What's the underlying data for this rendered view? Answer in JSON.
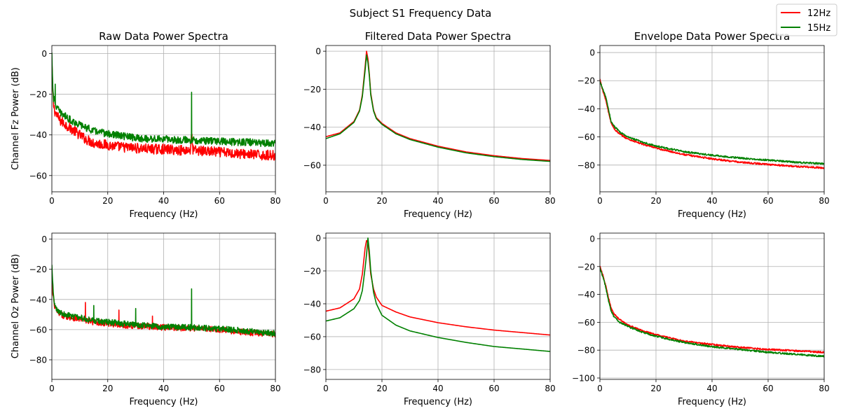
{
  "figure": {
    "suptitle": "Subject S1 Frequency Data",
    "legend": {
      "placement": "top-right",
      "entries": [
        {
          "name": "12Hz",
          "color": "#ff0000"
        },
        {
          "name": "15Hz",
          "color": "#008000"
        }
      ]
    }
  },
  "chart_data": [
    {
      "type": "line",
      "title": "Raw Data Power Spectra",
      "xlabel": "Frequency (Hz)",
      "ylabel": "Channel Fz Power (dB)",
      "xlim": [
        0,
        80
      ],
      "ylim": [
        -68,
        4
      ],
      "xticks": [
        0,
        20,
        40,
        60,
        80
      ],
      "yticks": [
        0,
        -20,
        -40,
        -60
      ],
      "grid": true,
      "series": [
        {
          "name": "12Hz",
          "color": "#ff0000",
          "noise": 2.5,
          "x": [
            0,
            0.3,
            0.6,
            1,
            2,
            3,
            4,
            5,
            7,
            10,
            12,
            15,
            20,
            25,
            30,
            35,
            40,
            45,
            49.5,
            50,
            50.5,
            55,
            60,
            65,
            70,
            75,
            80
          ],
          "y": [
            -5,
            -18,
            -25,
            -28,
            -31,
            -33,
            -34,
            -35,
            -37,
            -40,
            -42,
            -44,
            -45,
            -46,
            -46.5,
            -47,
            -47,
            -47.5,
            -47.5,
            -40,
            -47.5,
            -48,
            -48.5,
            -49,
            -49.5,
            -50,
            -50
          ],
          "spikes": [
            {
              "x": 50,
              "y": -40
            }
          ]
        },
        {
          "name": "15Hz",
          "color": "#008000",
          "noise": 1.8,
          "x": [
            0,
            0.3,
            0.6,
            1,
            2,
            3,
            4,
            5,
            7,
            10,
            15,
            20,
            25,
            30,
            35,
            40,
            45,
            49.5,
            50,
            50.5,
            55,
            60,
            65,
            70,
            75,
            80
          ],
          "y": [
            0,
            -15,
            -22,
            -24,
            -27,
            -29,
            -30,
            -31,
            -33,
            -35,
            -38,
            -39.5,
            -40.5,
            -41.5,
            -42,
            -42,
            -42.5,
            -42.5,
            -42.5,
            -42.5,
            -43,
            -43,
            -43.5,
            -43.5,
            -44,
            -44
          ],
          "spikes": [
            {
              "x": 1.2,
              "y": -15
            },
            {
              "x": 50,
              "y": -19
            }
          ]
        }
      ]
    },
    {
      "type": "line",
      "title": "Filtered Data Power Spectra",
      "xlabel": "Frequency (Hz)",
      "ylabel": "",
      "xlim": [
        0,
        80
      ],
      "ylim": [
        -74,
        3
      ],
      "xticks": [
        0,
        20,
        40,
        60,
        80
      ],
      "yticks": [
        0,
        -20,
        -40,
        -60
      ],
      "grid": true,
      "series": [
        {
          "name": "12Hz",
          "color": "#ff0000",
          "noise": 0,
          "x": [
            0,
            5,
            10,
            12,
            13,
            14,
            14.5,
            15,
            15.5,
            16,
            17,
            18,
            20,
            25,
            30,
            40,
            50,
            60,
            70,
            80
          ],
          "y": [
            -45,
            -43,
            -37,
            -31,
            -23,
            -8,
            0,
            -4,
            -12,
            -22,
            -31,
            -35,
            -38,
            -43,
            -46,
            -50,
            -53,
            -55,
            -56.5,
            -57.5
          ]
        },
        {
          "name": "15Hz",
          "color": "#008000",
          "noise": 0,
          "x": [
            0,
            5,
            10,
            12,
            13,
            14,
            14.5,
            15,
            15.5,
            16,
            17,
            18,
            20,
            25,
            30,
            40,
            50,
            60,
            70,
            80
          ],
          "y": [
            -46,
            -43.5,
            -37.5,
            -31.5,
            -24,
            -10,
            -2,
            -6,
            -13,
            -23,
            -31.5,
            -35.5,
            -38.5,
            -43.5,
            -46.5,
            -50.5,
            -53.5,
            -55.5,
            -57,
            -58
          ]
        }
      ]
    },
    {
      "type": "line",
      "title": "Envelope Data Power Spectra",
      "xlabel": "Frequency (Hz)",
      "ylabel": "",
      "xlim": [
        0,
        80
      ],
      "ylim": [
        -99,
        5
      ],
      "xticks": [
        0,
        20,
        40,
        60,
        80
      ],
      "yticks": [
        0,
        -20,
        -40,
        -60,
        -80
      ],
      "grid": true,
      "series": [
        {
          "name": "12Hz",
          "color": "#ff0000",
          "noise": 0.6,
          "x": [
            0,
            0.5,
            1,
            2,
            3,
            4,
            5,
            7,
            10,
            15,
            20,
            30,
            40,
            50,
            60,
            70,
            80
          ],
          "y": [
            -19,
            -23,
            -27,
            -33,
            -42,
            -50,
            -54,
            -58,
            -61.5,
            -65,
            -68,
            -72.5,
            -75.5,
            -78,
            -79.5,
            -81,
            -82
          ]
        },
        {
          "name": "15Hz",
          "color": "#008000",
          "noise": 0.6,
          "x": [
            0,
            0.5,
            1,
            2,
            3,
            4,
            5,
            7,
            10,
            15,
            20,
            30,
            40,
            50,
            60,
            70,
            80
          ],
          "y": [
            -21,
            -23,
            -26,
            -31,
            -40,
            -49,
            -52,
            -56.5,
            -60,
            -63.5,
            -66.5,
            -70.5,
            -73,
            -75,
            -76.5,
            -78,
            -79
          ]
        }
      ]
    },
    {
      "type": "line",
      "title": "",
      "xlabel": "Frequency (Hz)",
      "ylabel": "Channel Oz Power (dB)",
      "xlim": [
        0,
        80
      ],
      "ylim": [
        -93,
        4
      ],
      "xticks": [
        0,
        20,
        40,
        60,
        80
      ],
      "yticks": [
        0,
        -20,
        -40,
        -60,
        -80
      ],
      "grid": true,
      "series": [
        {
          "name": "12Hz",
          "color": "#ff0000",
          "noise": 2.0,
          "x": [
            0,
            0.3,
            0.6,
            1,
            2,
            3,
            4,
            5,
            7,
            10,
            15,
            20,
            25,
            30,
            35,
            40,
            45,
            50,
            55,
            60,
            65,
            70,
            75,
            80
          ],
          "y": [
            -30,
            -36,
            -40,
            -45,
            -48,
            -50,
            -50.5,
            -51,
            -52,
            -53,
            -55,
            -56,
            -57,
            -57.5,
            -58,
            -58.5,
            -59,
            -59,
            -59.5,
            -60,
            -61,
            -62,
            -62.5,
            -63
          ],
          "spikes": [
            {
              "x": 12,
              "y": -42
            },
            {
              "x": 24,
              "y": -47
            },
            {
              "x": 36,
              "y": -51
            },
            {
              "x": 50,
              "y": -56
            }
          ]
        },
        {
          "name": "15Hz",
          "color": "#008000",
          "noise": 2.0,
          "x": [
            0,
            0.3,
            0.6,
            1,
            2,
            3,
            4,
            5,
            7,
            10,
            15,
            20,
            25,
            30,
            35,
            40,
            45,
            50,
            55,
            60,
            65,
            70,
            75,
            80
          ],
          "y": [
            -18,
            -30,
            -38,
            -44,
            -47,
            -48.5,
            -49.5,
            -50,
            -51,
            -52,
            -54,
            -55,
            -56,
            -57,
            -57.5,
            -58,
            -58.5,
            -58.5,
            -59,
            -59.5,
            -60,
            -61,
            -62,
            -62.5
          ],
          "spikes": [
            {
              "x": 15,
              "y": -44
            },
            {
              "x": 30,
              "y": -46
            },
            {
              "x": 50,
              "y": -33
            }
          ]
        }
      ]
    },
    {
      "type": "line",
      "title": "",
      "xlabel": "Frequency (Hz)",
      "ylabel": "",
      "xlim": [
        0,
        80
      ],
      "ylim": [
        -86,
        3
      ],
      "xticks": [
        0,
        20,
        40,
        60,
        80
      ],
      "yticks": [
        0,
        -20,
        -40,
        -60,
        -80
      ],
      "grid": true,
      "series": [
        {
          "name": "12Hz",
          "color": "#ff0000",
          "noise": 0,
          "x": [
            0,
            5,
            10,
            12,
            13,
            14,
            14.5,
            15,
            15.5,
            16,
            17,
            18,
            20,
            25,
            30,
            40,
            50,
            60,
            70,
            80
          ],
          "y": [
            -44.5,
            -42.5,
            -37,
            -31,
            -22,
            -6,
            -1.5,
            -3,
            -12,
            -22,
            -31,
            -36,
            -41,
            -45,
            -48,
            -51.5,
            -54,
            -56,
            -57.5,
            -59
          ]
        },
        {
          "name": "15Hz",
          "color": "#008000",
          "noise": 0,
          "x": [
            0,
            5,
            10,
            12,
            13,
            14,
            14.5,
            15,
            15.5,
            16,
            17,
            18,
            20,
            25,
            30,
            40,
            50,
            60,
            70,
            80
          ],
          "y": [
            -50.5,
            -48.5,
            -43,
            -38,
            -32,
            -18,
            -10,
            0,
            -8,
            -20,
            -33,
            -40,
            -47,
            -53,
            -56.5,
            -60.5,
            -63.5,
            -66,
            -67.5,
            -69
          ]
        }
      ]
    },
    {
      "type": "line",
      "title": "",
      "xlabel": "Frequency (Hz)",
      "ylabel": "",
      "xlim": [
        0,
        80
      ],
      "ylim": [
        -101,
        4
      ],
      "xticks": [
        0,
        20,
        40,
        60,
        80
      ],
      "yticks": [
        0,
        -20,
        -40,
        -60,
        -80,
        -100
      ],
      "grid": true,
      "series": [
        {
          "name": "12Hz",
          "color": "#ff0000",
          "noise": 0.6,
          "x": [
            0,
            0.5,
            1,
            2,
            3,
            4,
            5,
            7,
            10,
            15,
            20,
            30,
            40,
            50,
            60,
            70,
            80
          ],
          "y": [
            -20,
            -23,
            -26,
            -33,
            -42,
            -50,
            -54,
            -58,
            -62,
            -66,
            -69,
            -73.5,
            -76,
            -78,
            -79.5,
            -80.5,
            -81.5
          ]
        },
        {
          "name": "15Hz",
          "color": "#008000",
          "noise": 0.6,
          "x": [
            0,
            0.5,
            1,
            2,
            3,
            4,
            5,
            7,
            10,
            15,
            20,
            30,
            40,
            50,
            60,
            70,
            80
          ],
          "y": [
            -21,
            -24,
            -27,
            -34,
            -44,
            -52,
            -56,
            -60,
            -63,
            -67,
            -70,
            -74.5,
            -77.5,
            -79.5,
            -81.5,
            -83,
            -84.5
          ]
        }
      ]
    }
  ]
}
